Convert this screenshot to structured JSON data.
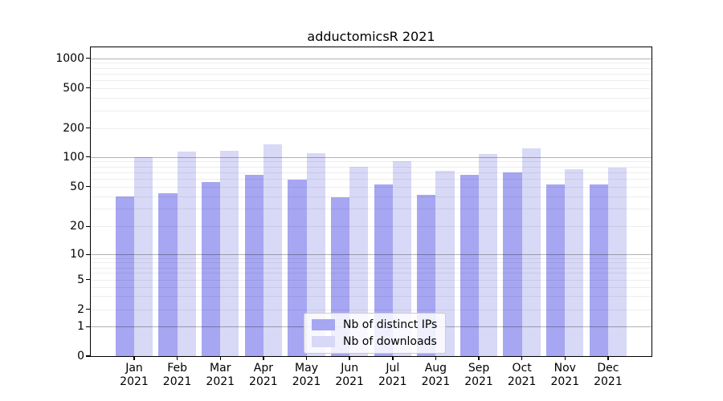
{
  "title": "adductomicsR 2021",
  "chart_data": {
    "type": "bar",
    "title": "adductomicsR 2021",
    "months": [
      "Jan",
      "Feb",
      "Mar",
      "Apr",
      "May",
      "Jun",
      "Jul",
      "Aug",
      "Sep",
      "Oct",
      "Nov",
      "Dec"
    ],
    "year": "2021",
    "series": [
      {
        "name": "Nb of distinct IPs",
        "color": "#a6a6f2",
        "values": [
          40,
          43,
          56,
          66,
          59,
          39,
          53,
          41,
          66,
          70,
          53,
          53
        ]
      },
      {
        "name": "Nb of downloads",
        "color": "#d8d8f7",
        "values": [
          100,
          114,
          116,
          134,
          110,
          80,
          91,
          72,
          107,
          122,
          75,
          78
        ]
      }
    ],
    "y_ticks": [
      1000,
      500,
      200,
      100,
      50,
      20,
      10,
      5,
      2,
      1,
      0
    ],
    "y_scale": "log-like with 0 baseline",
    "ylim": [
      0,
      1400
    ],
    "grid": "horizontal major and minor log gridlines",
    "legend_position": "lower center"
  }
}
